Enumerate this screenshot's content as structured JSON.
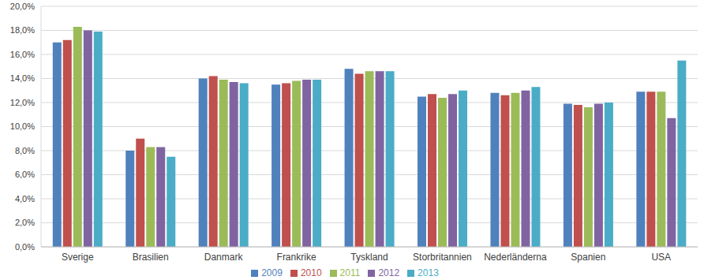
{
  "chart_data": {
    "type": "bar",
    "categories": [
      "Sverige",
      "Brasilien",
      "Danmark",
      "Frankrike",
      "Tyskland",
      "Storbritannien",
      "Nederländerna",
      "Spanien",
      "USA"
    ],
    "series": [
      {
        "name": "2009",
        "color": "#4f81bd",
        "values": [
          17.0,
          8.0,
          14.0,
          13.5,
          14.8,
          12.5,
          12.8,
          11.9,
          12.9
        ]
      },
      {
        "name": "2010",
        "color": "#c0504d",
        "values": [
          17.2,
          9.0,
          14.2,
          13.6,
          14.4,
          12.7,
          12.6,
          11.8,
          12.9
        ]
      },
      {
        "name": "2011",
        "color": "#9bbb59",
        "values": [
          18.3,
          8.3,
          13.9,
          13.8,
          14.6,
          12.4,
          12.8,
          11.6,
          12.9
        ]
      },
      {
        "name": "2012",
        "color": "#8064a2",
        "values": [
          18.0,
          8.3,
          13.7,
          13.9,
          14.6,
          12.7,
          13.0,
          11.9,
          10.7
        ]
      },
      {
        "name": "2013",
        "color": "#4bacc6",
        "values": [
          17.9,
          7.5,
          13.6,
          13.9,
          14.6,
          13.0,
          13.3,
          12.0,
          15.5
        ]
      }
    ],
    "ylim": [
      0,
      20
    ],
    "yticks": [
      {
        "value": 0,
        "label": "0,0%"
      },
      {
        "value": 2,
        "label": "2,0%"
      },
      {
        "value": 4,
        "label": "4,0%"
      },
      {
        "value": 6,
        "label": "6,0%"
      },
      {
        "value": 8,
        "label": "8,0%"
      },
      {
        "value": 10,
        "label": "10,0%"
      },
      {
        "value": 12,
        "label": "12,0%"
      },
      {
        "value": 14,
        "label": "14,0%"
      },
      {
        "value": 16,
        "label": "16,0%"
      },
      {
        "value": 18,
        "label": "18,0%"
      },
      {
        "value": 20,
        "label": "20,0%"
      }
    ],
    "grid": true,
    "legend": "bottom"
  }
}
